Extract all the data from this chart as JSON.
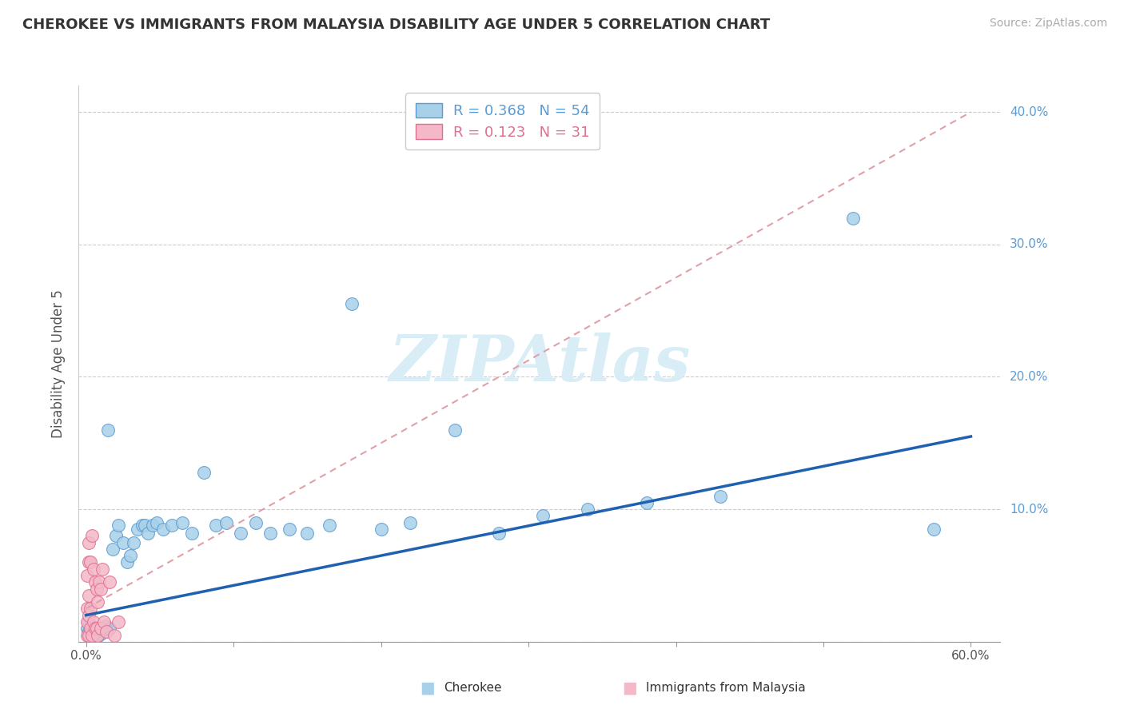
{
  "title": "CHEROKEE VS IMMIGRANTS FROM MALAYSIA DISABILITY AGE UNDER 5 CORRELATION CHART",
  "source": "Source: ZipAtlas.com",
  "ylabel": "Disability Age Under 5",
  "ylim": [
    0,
    0.42
  ],
  "xlim": [
    -0.005,
    0.62
  ],
  "yticks": [
    0.0,
    0.1,
    0.2,
    0.3,
    0.4
  ],
  "ytick_labels": [
    "",
    "10.0%",
    "20.0%",
    "30.0%",
    "40.0%"
  ],
  "xticks": [
    0.0,
    0.1,
    0.2,
    0.3,
    0.4,
    0.5,
    0.6
  ],
  "xtick_labels": [
    "0.0%",
    "",
    "",
    "",
    "",
    "",
    "60.0%"
  ],
  "legend_r1": "R = 0.368",
  "legend_n1": "N = 54",
  "legend_r2": "R = 0.123",
  "legend_n2": "N = 31",
  "blue_color": "#a8d0e8",
  "blue_edge": "#5b9bd5",
  "pink_color": "#f4b8c8",
  "pink_edge": "#e07090",
  "trend_blue_color": "#2060b0",
  "trend_gray_color": "#e0a0a8",
  "watermark_color": "#d8edf6",
  "background": "#ffffff",
  "cherokee_x": [
    0.001,
    0.002,
    0.002,
    0.003,
    0.003,
    0.004,
    0.005,
    0.005,
    0.006,
    0.007,
    0.008,
    0.009,
    0.01,
    0.011,
    0.013,
    0.015,
    0.016,
    0.018,
    0.02,
    0.022,
    0.025,
    0.028,
    0.03,
    0.032,
    0.035,
    0.038,
    0.04,
    0.042,
    0.045,
    0.048,
    0.052,
    0.058,
    0.065,
    0.072,
    0.08,
    0.088,
    0.095,
    0.105,
    0.115,
    0.125,
    0.138,
    0.15,
    0.165,
    0.18,
    0.2,
    0.22,
    0.25,
    0.28,
    0.31,
    0.34,
    0.38,
    0.43,
    0.52,
    0.575
  ],
  "cherokee_y": [
    0.01,
    0.008,
    0.015,
    0.005,
    0.012,
    0.007,
    0.003,
    0.009,
    0.006,
    0.011,
    0.004,
    0.008,
    0.006,
    0.009,
    0.012,
    0.16,
    0.01,
    0.07,
    0.08,
    0.088,
    0.075,
    0.06,
    0.065,
    0.075,
    0.085,
    0.088,
    0.088,
    0.082,
    0.088,
    0.09,
    0.085,
    0.088,
    0.09,
    0.082,
    0.128,
    0.088,
    0.09,
    0.082,
    0.09,
    0.082,
    0.085,
    0.082,
    0.088,
    0.255,
    0.085,
    0.09,
    0.16,
    0.082,
    0.095,
    0.1,
    0.105,
    0.11,
    0.32,
    0.085
  ],
  "malaysia_x": [
    0.001,
    0.001,
    0.001,
    0.001,
    0.002,
    0.002,
    0.002,
    0.002,
    0.002,
    0.003,
    0.003,
    0.003,
    0.004,
    0.004,
    0.005,
    0.005,
    0.006,
    0.006,
    0.007,
    0.007,
    0.008,
    0.008,
    0.009,
    0.01,
    0.01,
    0.011,
    0.012,
    0.014,
    0.016,
    0.019,
    0.022
  ],
  "malaysia_y": [
    0.005,
    0.015,
    0.025,
    0.05,
    0.005,
    0.02,
    0.035,
    0.06,
    0.075,
    0.01,
    0.025,
    0.06,
    0.005,
    0.08,
    0.015,
    0.055,
    0.01,
    0.045,
    0.01,
    0.04,
    0.005,
    0.03,
    0.045,
    0.01,
    0.04,
    0.055,
    0.015,
    0.008,
    0.045,
    0.005,
    0.015
  ],
  "trend_blue_x0": 0.0,
  "trend_blue_y0": 0.02,
  "trend_blue_x1": 0.6,
  "trend_blue_y1": 0.155,
  "trend_gray_x0": 0.0,
  "trend_gray_y0": 0.025,
  "trend_gray_x1": 0.6,
  "trend_gray_y1": 0.4
}
